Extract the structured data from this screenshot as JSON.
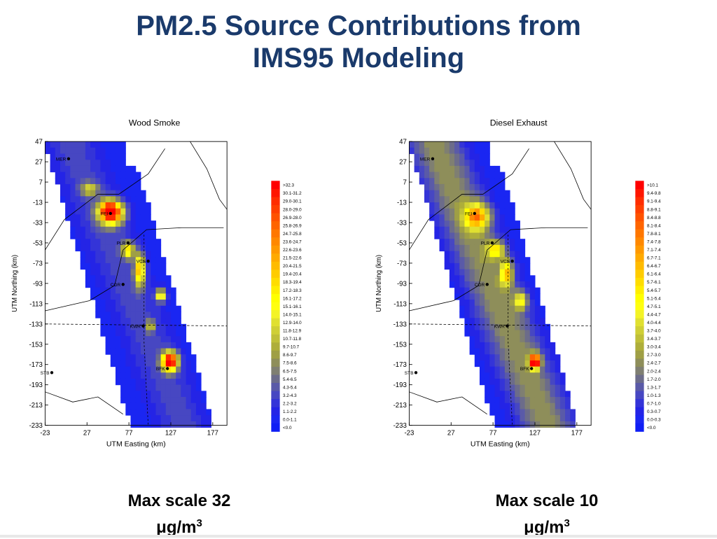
{
  "title": {
    "line1": "PM2.5 Source Contributions from",
    "line2": "IMS95 Modeling"
  },
  "colors": {
    "title": "#1a3a6b",
    "background_low": "#1a26f2",
    "cities_dot": "#000000"
  },
  "maps": [
    {
      "title": "Wood Smoke",
      "xlabel": "UTM Easting (km)",
      "ylabel": "UTM Northing (km)",
      "x_ticks": [
        "-23",
        "27",
        "77",
        "127",
        "177"
      ],
      "y_ticks": [
        "47",
        "27",
        "7",
        "-13",
        "-33",
        "-53",
        "-73",
        "-93",
        "-113",
        "-133",
        "-153",
        "-173",
        "-193",
        "-213",
        "-233"
      ],
      "legend": [
        ">32.3",
        "30.1-31.2",
        "29.0-30.1",
        "28.0-29.0",
        "26.9-28.0",
        "25.8-26.9",
        "24.7-25.8",
        "23.6-24.7",
        "22.6-23.6",
        "21.5-22.6",
        "20.4-21.5",
        "19.4-20.4",
        "18.3-19.4",
        "17.2-18.3",
        "16.1-17.2",
        "15.1-16.1",
        "14.0-15.1",
        "12.9-14.0",
        "11.8-12.9",
        "10.7-11.8",
        "9.7-10.7",
        "8.6-9.7",
        "7.5-8.6",
        "6.5-7.5",
        "5.4-6.5",
        "4.3-5.4",
        "3.2-4.3",
        "2.2-3.2",
        "1.1-2.2",
        "0.0-1.1",
        "<0.0"
      ],
      "cities": [
        "MER",
        "FEI",
        "PLR",
        "VCS",
        "COR",
        "KWR",
        "BFK",
        "STB"
      ]
    },
    {
      "title": "Diesel Exhaust",
      "xlabel": "UTM Easting (km)",
      "ylabel": "UTM Northing (km)",
      "x_ticks": [
        "-23",
        "27",
        "77",
        "127",
        "177"
      ],
      "y_ticks": [
        "47",
        "27",
        "7",
        "-13",
        "-33",
        "-53",
        "-73",
        "-93",
        "-113",
        "-133",
        "-153",
        "-173",
        "-193",
        "-213",
        "-233"
      ],
      "legend": [
        ">10.1",
        "9.4-9.8",
        "9.1-9.4",
        "8.8-9.1",
        "8.4-8.8",
        "8.1-8.4",
        "7.8-8.1",
        "7.4-7.8",
        "7.1-7.4",
        "6.7-7.1",
        "6.4-6.7",
        "6.1-6.4",
        "5.7-6.1",
        "5.4-5.7",
        "5.1-5.4",
        "4.7-5.1",
        "4.4-4.7",
        "4.0-4.4",
        "3.7-4.0",
        "3.4-3.7",
        "3.0-3.4",
        "2.7-3.0",
        "2.4-2.7",
        "2.0-2.4",
        "1.7-2.0",
        "1.3-1.7",
        "1.0-1.3",
        "0.7-1.0",
        "0.3-0.7",
        "0.0-0.3",
        "<0.0"
      ],
      "cities": [
        "MER",
        "FEI",
        "PLR",
        "VCS",
        "COR",
        "KWR",
        "BFK",
        "STB"
      ]
    }
  ],
  "captions": [
    {
      "line1": "Max scale 32",
      "line2_base": "μg/m",
      "line2_sup": "3"
    },
    {
      "line1": "Max scale 10",
      "line2_base": "μg/m",
      "line2_sup": "3"
    }
  ]
}
